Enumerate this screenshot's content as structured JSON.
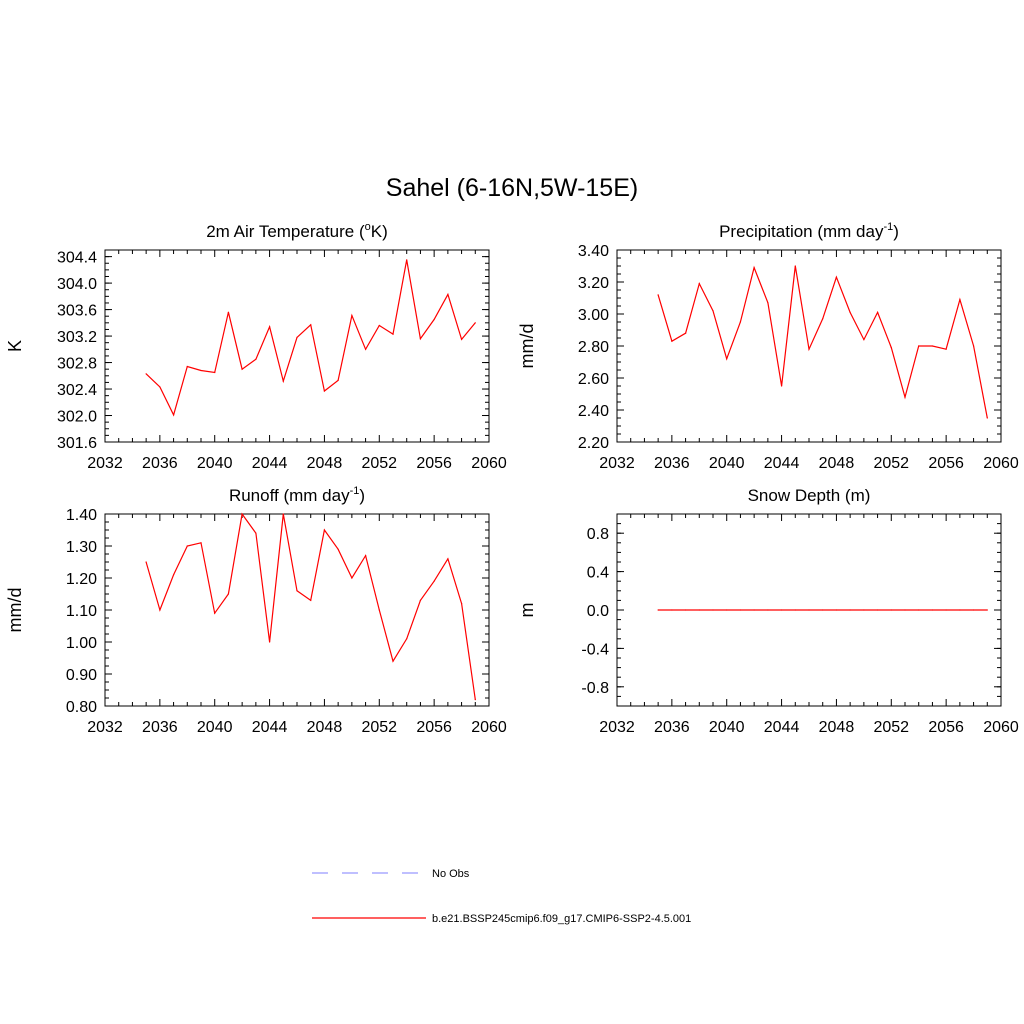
{
  "figure": {
    "title": "Sahel (6-16N,5W-15E)",
    "legend": [
      {
        "label": "No Obs",
        "color": "#9999ff",
        "dash": true
      },
      {
        "label": "b.e21.BSSP245cmip6.f09_g17.CMIP6-SSP2-4.5.001",
        "color": "#ff0000",
        "dash": false
      }
    ]
  },
  "chart_data": [
    {
      "type": "line",
      "title": "2m Air Temperature (",
      "title_sup": "o",
      "title_after": "K)",
      "ylabel": "K",
      "xlim": [
        2032,
        2060
      ],
      "ylim": [
        301.6,
        304.5
      ],
      "xticks": [
        "2032",
        "2036",
        "2040",
        "2044",
        "2048",
        "2052",
        "2056",
        "2060"
      ],
      "yticks": [
        "301.6",
        "302.0",
        "302.4",
        "302.8",
        "303.2",
        "303.6",
        "304.0",
        "304.4"
      ],
      "series": [
        {
          "color": "#ff0000",
          "x": [
            2035,
            2036,
            2037,
            2038,
            2039,
            2040,
            2041,
            2042,
            2043,
            2044,
            2045,
            2046,
            2047,
            2048,
            2049,
            2050,
            2051,
            2052,
            2053,
            2054,
            2055,
            2056,
            2057,
            2058,
            2059
          ],
          "values": [
            302.63,
            302.43,
            302.01,
            302.74,
            302.68,
            302.65,
            303.56,
            302.7,
            302.85,
            303.34,
            302.52,
            303.18,
            303.37,
            302.37,
            302.53,
            303.51,
            303.0,
            303.36,
            303.23,
            304.35,
            303.16,
            303.45,
            303.83,
            303.15,
            303.4
          ]
        }
      ]
    },
    {
      "type": "line",
      "title": "Precipitation (mm day",
      "title_sup": "-1",
      "title_after": ")",
      "ylabel": "mm/d",
      "xlim": [
        2032,
        2060
      ],
      "ylim": [
        2.2,
        3.4
      ],
      "xticks": [
        "2032",
        "2036",
        "2040",
        "2044",
        "2048",
        "2052",
        "2056",
        "2060"
      ],
      "yticks": [
        "2.20",
        "2.40",
        "2.60",
        "2.80",
        "3.00",
        "3.20",
        "3.40"
      ],
      "series": [
        {
          "color": "#ff0000",
          "x": [
            2035,
            2036,
            2037,
            2038,
            2039,
            2040,
            2041,
            2042,
            2043,
            2044,
            2045,
            2046,
            2047,
            2048,
            2049,
            2050,
            2051,
            2052,
            2053,
            2054,
            2055,
            2056,
            2057,
            2058,
            2059
          ],
          "values": [
            3.12,
            2.83,
            2.88,
            3.19,
            3.02,
            2.72,
            2.95,
            3.29,
            3.07,
            2.55,
            3.3,
            2.78,
            2.97,
            3.23,
            3.01,
            2.84,
            3.01,
            2.79,
            2.48,
            2.8,
            2.8,
            2.78,
            3.09,
            2.8,
            2.35
          ]
        }
      ]
    },
    {
      "type": "line",
      "title": "Runoff (mm day",
      "title_sup": "-1",
      "title_after": ")",
      "ylabel": "mm/d",
      "xlim": [
        2032,
        2060
      ],
      "ylim": [
        0.8,
        1.4
      ],
      "xticks": [
        "2032",
        "2036",
        "2040",
        "2044",
        "2048",
        "2052",
        "2056",
        "2060"
      ],
      "yticks": [
        "0.80",
        "0.90",
        "1.00",
        "1.10",
        "1.20",
        "1.30",
        "1.40"
      ],
      "series": [
        {
          "color": "#ff0000",
          "x": [
            2035,
            2036,
            2037,
            2038,
            2039,
            2040,
            2041,
            2042,
            2043,
            2044,
            2045,
            2046,
            2047,
            2048,
            2049,
            2050,
            2051,
            2052,
            2053,
            2054,
            2055,
            2056,
            2057,
            2058,
            2059
          ],
          "values": [
            1.25,
            1.1,
            1.21,
            1.3,
            1.31,
            1.09,
            1.15,
            1.4,
            1.34,
            1.0,
            1.4,
            1.16,
            1.13,
            1.35,
            1.29,
            1.2,
            1.27,
            1.1,
            0.94,
            1.01,
            1.13,
            1.19,
            1.26,
            1.12,
            0.82
          ]
        }
      ]
    },
    {
      "type": "line",
      "title": "Snow Depth (m)",
      "title_sup": "",
      "title_after": "",
      "ylabel": "m",
      "xlim": [
        2032,
        2060
      ],
      "ylim": [
        -1.0,
        1.0
      ],
      "xticks": [
        "2032",
        "2036",
        "2040",
        "2044",
        "2048",
        "2052",
        "2056",
        "2060"
      ],
      "yticks": [
        "-0.8",
        "-0.4",
        "0.0",
        "0.4",
        "0.8"
      ],
      "series": [
        {
          "color": "#ff0000",
          "x": [
            2035,
            2036,
            2037,
            2038,
            2039,
            2040,
            2041,
            2042,
            2043,
            2044,
            2045,
            2046,
            2047,
            2048,
            2049,
            2050,
            2051,
            2052,
            2053,
            2054,
            2055,
            2056,
            2057,
            2058,
            2059
          ],
          "values": [
            0,
            0,
            0,
            0,
            0,
            0,
            0,
            0,
            0,
            0,
            0,
            0,
            0,
            0,
            0,
            0,
            0,
            0,
            0,
            0,
            0,
            0,
            0,
            0,
            0
          ]
        }
      ]
    }
  ]
}
